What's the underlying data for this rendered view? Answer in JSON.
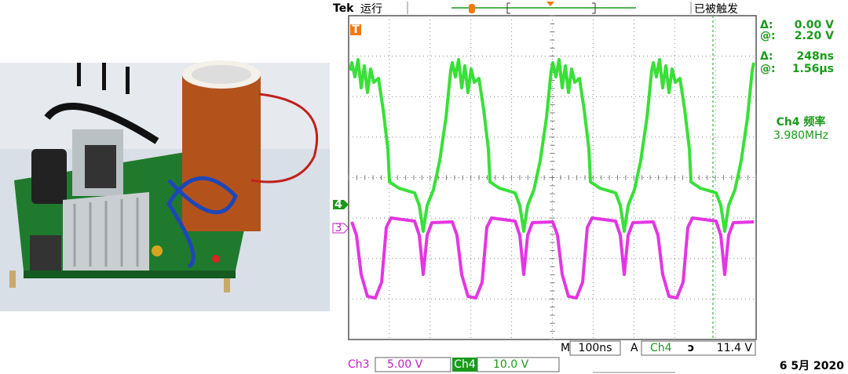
{
  "header": {
    "brand": "Tek",
    "status": "运行",
    "trigger_state": "已被触发"
  },
  "cursors": [
    {
      "label": "Δ:",
      "value": "0.00 V"
    },
    {
      "label": "@:",
      "value": "2.20 V"
    },
    {
      "label": "Δ:",
      "value": "248ns"
    },
    {
      "label": "@:",
      "value": "1.56µs"
    }
  ],
  "frequency": {
    "label": "Ch4 频率",
    "value": "3.980MHz"
  },
  "markers": {
    "trigger": "T",
    "ch4": "4",
    "ch3": "3"
  },
  "timebase": {
    "prefix": "M",
    "value": "100ns",
    "trigger_prefix": "A",
    "trigger_source": "Ch4",
    "trigger_slope": "ↄ",
    "trigger_level": "11.4 V"
  },
  "channels": [
    {
      "name": "Ch3",
      "scale": "5.00 V"
    },
    {
      "name": "Ch4",
      "scale": "10.0 V"
    }
  ],
  "date": "6 5月 2020"
}
